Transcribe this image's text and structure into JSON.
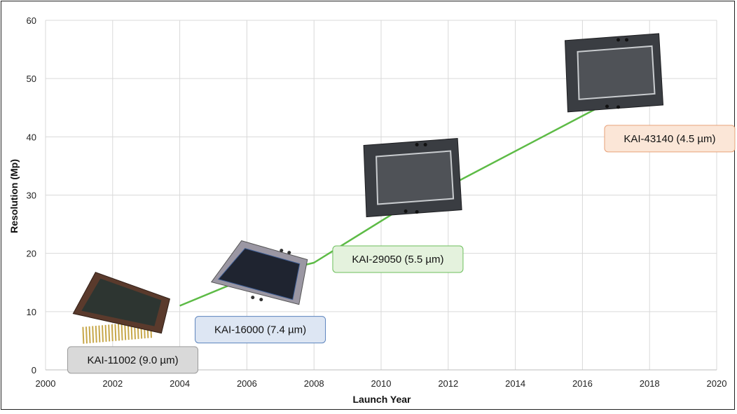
{
  "chart_data": {
    "type": "line",
    "xlabel": "Launch Year",
    "ylabel": "Resolution (Mp)",
    "xlim": [
      2000,
      2020
    ],
    "ylim": [
      0,
      60
    ],
    "xticks": [
      2000,
      2002,
      2004,
      2006,
      2008,
      2010,
      2012,
      2014,
      2016,
      2018,
      2020
    ],
    "yticks": [
      0,
      10,
      20,
      30,
      40,
      50,
      60
    ],
    "grid": true,
    "line_color": "#5dbb46",
    "series": [
      {
        "points": [
          {
            "x": 2004,
            "y": 11.0
          },
          {
            "x": 2005.8,
            "y": 15.3
          },
          {
            "x": 2008,
            "y": 18.4
          },
          {
            "x": 2010.8,
            "y": 28.4
          },
          {
            "x": 2012,
            "y": 31.5
          },
          {
            "x": 2016.8,
            "y": 46.0
          }
        ]
      }
    ],
    "annotations": [
      {
        "text": "KAI-11002 (9.0 µm)",
        "x": 2002.6,
        "y": 1.7,
        "fill": "#d9d9d9",
        "stroke": "#9a9a9a"
      },
      {
        "text": "KAI-16000 (7.4 µm)",
        "x": 2006.4,
        "y": 6.9,
        "fill": "#dde6f3",
        "stroke": "#5b83bd"
      },
      {
        "text": "KAI-29050 (5.5 µm)",
        "x": 2010.5,
        "y": 19.0,
        "fill": "#e4f2dd",
        "stroke": "#6cbf5b"
      },
      {
        "text": "KAI-43140 (4.5 µm)",
        "x": 2018.6,
        "y": 39.7,
        "fill": "#fbe6d7",
        "stroke": "#e8a27a"
      }
    ],
    "sensors": [
      {
        "name": "kai-11002-sensor",
        "x": 2002.2,
        "y": 10.5,
        "style": "pins"
      },
      {
        "name": "kai-16000-sensor",
        "x": 2006.3,
        "y": 16.4,
        "style": "tray"
      },
      {
        "name": "kai-29050-sensor",
        "x": 2010.9,
        "y": 33.0,
        "style": "frame"
      },
      {
        "name": "kai-43140-sensor",
        "x": 2016.9,
        "y": 51.0,
        "style": "frame"
      }
    ]
  }
}
